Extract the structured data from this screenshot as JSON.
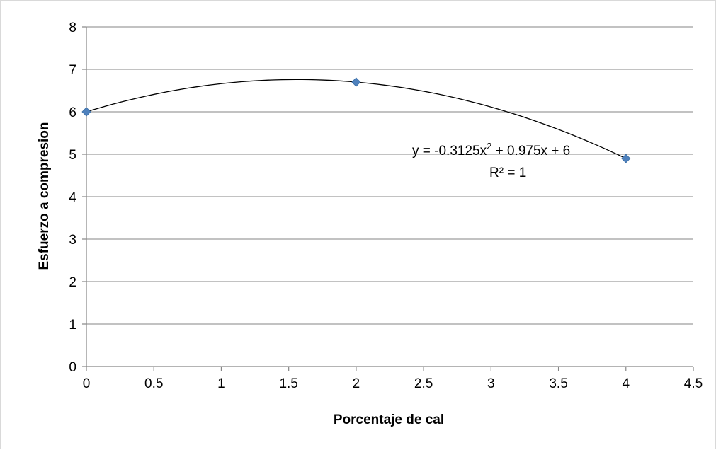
{
  "chart_data": {
    "type": "scatter",
    "title": "",
    "xlabel": "Porcentaje de cal",
    "ylabel": "Esfuerzo a compresion",
    "xlim": [
      0,
      4.5
    ],
    "ylim": [
      0,
      8
    ],
    "x_ticks": [
      "0",
      "0.5",
      "1",
      "1.5",
      "2",
      "2.5",
      "3",
      "3.5",
      "4",
      "4.5"
    ],
    "y_ticks": [
      "0",
      "1",
      "2",
      "3",
      "4",
      "5",
      "6",
      "7",
      "8"
    ],
    "grid": "horizontal",
    "legend": "none",
    "series": [
      {
        "x": [
          0,
          2,
          4
        ],
        "y": [
          6.0,
          6.7,
          4.9
        ],
        "marker": "diamond",
        "color": "#4f81bd"
      }
    ],
    "trendline": {
      "type": "polynomial",
      "order": 2,
      "coefficients": [
        -0.3125,
        0.975,
        6
      ],
      "x_range": [
        0,
        4
      ],
      "color": "#000000"
    },
    "annotations": {
      "equation_prefix": "y = -0.3125x",
      "equation_exp": "2",
      "equation_suffix": " + 0.975x + 6",
      "r_squared": "R² = 1"
    }
  }
}
